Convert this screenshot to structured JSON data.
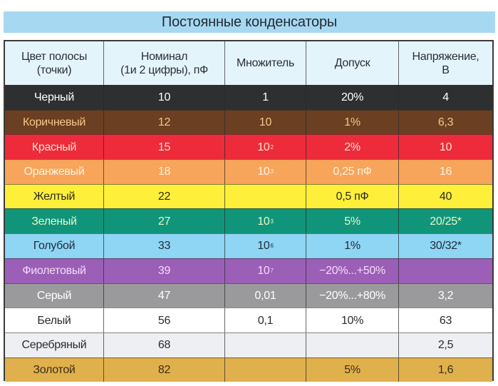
{
  "title": "Постоянные конденсаторы",
  "table": {
    "headers": {
      "color": "Цвет полосы\n(точки)",
      "color_l1": "Цвет полосы",
      "color_l2": "(точки)",
      "nominal_l1": "Номинал",
      "nominal_l2": "(1и 2 цифры), пФ",
      "multiplier": "Множитель",
      "tolerance": "Допуск",
      "voltage_l1": "Напряжение,",
      "voltage_l2": "В"
    },
    "rows": [
      {
        "color": "Черный",
        "nominal": "10",
        "mult_base": "1",
        "mult_exp": "",
        "tolerance": "20%",
        "voltage": "4",
        "bg": "#2d2f31",
        "fg": "#ffffff"
      },
      {
        "color": "Коричневый",
        "nominal": "12",
        "mult_base": "10",
        "mult_exp": "",
        "tolerance": "1%",
        "voltage": "6,3",
        "bg": "#6b3f22",
        "fg": "#f6c68a"
      },
      {
        "color": "Красный",
        "nominal": "15",
        "mult_base": "10",
        "mult_exp": "2",
        "tolerance": "2%",
        "voltage": "10",
        "bg": "#ee2b3b",
        "fg": "#fde2d2"
      },
      {
        "color": "Оранжевый",
        "nominal": "18",
        "mult_base": "10",
        "mult_exp": "3",
        "tolerance": "0,25 пФ",
        "voltage": "16",
        "bg": "#f7a55a",
        "fg": "#fff3e3"
      },
      {
        "color": "Желтый",
        "nominal": "22",
        "mult_base": "",
        "mult_exp": "",
        "tolerance": "0,5 пФ",
        "voltage": "40",
        "bg": "#fdef3a",
        "fg": "#2b2b22"
      },
      {
        "color": "Зеленый",
        "nominal": "27",
        "mult_base": "10",
        "mult_exp": "3",
        "tolerance": "5%",
        "voltage": "20/25*",
        "bg": "#11957a",
        "fg": "#e6f7c8"
      },
      {
        "color": "Голубой",
        "nominal": "33",
        "mult_base": "10",
        "mult_exp": "6",
        "tolerance": "1%",
        "voltage": "30/32*",
        "bg": "#8fd5f4",
        "fg": "#1f2b36"
      },
      {
        "color": "Фиолетовый",
        "nominal": "39",
        "mult_base": "10",
        "mult_exp": "7",
        "tolerance": "−20%...+50%",
        "voltage": "",
        "bg": "#9b5fb8",
        "fg": "#f3ddf5"
      },
      {
        "color": "Серый",
        "nominal": "47",
        "mult_base": "0,01",
        "mult_exp": "",
        "tolerance": "−20%...+80%",
        "voltage": "3,2",
        "bg": "#9a9a9c",
        "fg": "#ffffff"
      },
      {
        "color": "Белый",
        "nominal": "56",
        "mult_base": "0,1",
        "mult_exp": "",
        "tolerance": "10%",
        "voltage": "63",
        "bg": "#ffffff",
        "fg": "#2b2b2b"
      },
      {
        "color": "Серебряный",
        "nominal": "68",
        "mult_base": "",
        "mult_exp": "",
        "tolerance": "",
        "voltage": "2,5",
        "bg": "#eeeff3",
        "fg": "#2b2b2b"
      },
      {
        "color": "Золотой",
        "nominal": "82",
        "mult_base": "",
        "mult_exp": "",
        "tolerance": "5%",
        "voltage": "1,6",
        "bg": "#e0b04d",
        "fg": "#3a2e1a"
      }
    ]
  }
}
